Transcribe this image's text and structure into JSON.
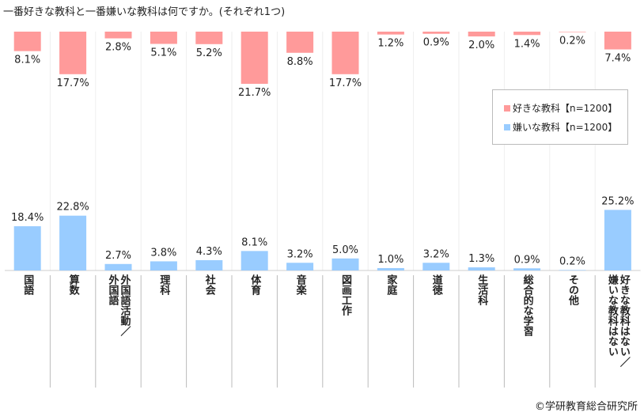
{
  "title": "一番好きな教科と一番嫌いな教科は何ですか。(それぞれ1つ)",
  "credit": "©学研教育総合研究所",
  "colors": {
    "like": "#ff9a9a",
    "dislike": "#99ccff",
    "grid": "#cccccc"
  },
  "chart_data": {
    "type": "bar",
    "title": "一番好きな教科と一番嫌いな教科は何ですか。(それぞれ1つ)",
    "categories": [
      "国語",
      "算数",
      "外国語活動／\n外国語",
      "理科",
      "社会",
      "体育",
      "音楽",
      "図画工作",
      "家庭",
      "道徳",
      "生活科",
      "総合的な学習",
      "その他",
      "好きな教科はない／\n嫌いな教科はない"
    ],
    "series": [
      {
        "name": "好きな教科【n=1200】",
        "values": [
          8.1,
          17.7,
          2.8,
          5.1,
          5.2,
          21.7,
          8.8,
          17.7,
          1.2,
          0.9,
          2.0,
          1.4,
          0.2,
          7.4
        ],
        "labels": [
          "8.1%",
          "17.7%",
          "2.8%",
          "5.1%",
          "5.2%",
          "21.7%",
          "8.8%",
          "17.7%",
          "1.2%",
          "0.9%",
          "2.0%",
          "1.4%",
          "0.2%",
          "7.4%"
        ]
      },
      {
        "name": "嫌いな教科【n=1200】",
        "values": [
          18.4,
          22.8,
          2.7,
          3.8,
          4.3,
          8.1,
          3.2,
          5.0,
          1.0,
          3.2,
          1.3,
          0.9,
          0.2,
          25.2
        ],
        "labels": [
          "18.4%",
          "22.8%",
          "2.7%",
          "3.8%",
          "4.3%",
          "8.1%",
          "3.2%",
          "5.0%",
          "1.0%",
          "3.2%",
          "1.3%",
          "0.9%",
          "0.2%",
          "25.2%"
        ]
      }
    ],
    "legend_position": "right",
    "grid": true
  }
}
